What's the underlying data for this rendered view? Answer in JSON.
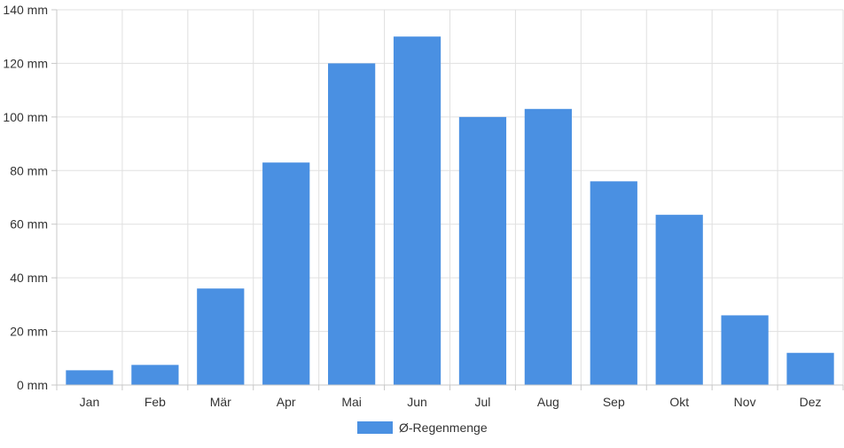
{
  "chart_data": {
    "type": "bar",
    "categories": [
      "Jan",
      "Feb",
      "Mär",
      "Apr",
      "Mai",
      "Jun",
      "Jul",
      "Aug",
      "Sep",
      "Okt",
      "Nov",
      "Dez"
    ],
    "series": [
      {
        "name": "Ø-Regenmenge",
        "values": [
          5.5,
          7.5,
          36,
          83,
          120,
          130,
          100,
          103,
          76,
          63.5,
          26,
          12
        ],
        "color": "#4a90e2"
      }
    ],
    "y_ticks": [
      "0 mm",
      "20 mm",
      "40 mm",
      "60 mm",
      "80 mm",
      "100 mm",
      "120 mm",
      "140 mm"
    ],
    "ylim": [
      0,
      140
    ],
    "grid": true,
    "legend_position": "bottom"
  }
}
